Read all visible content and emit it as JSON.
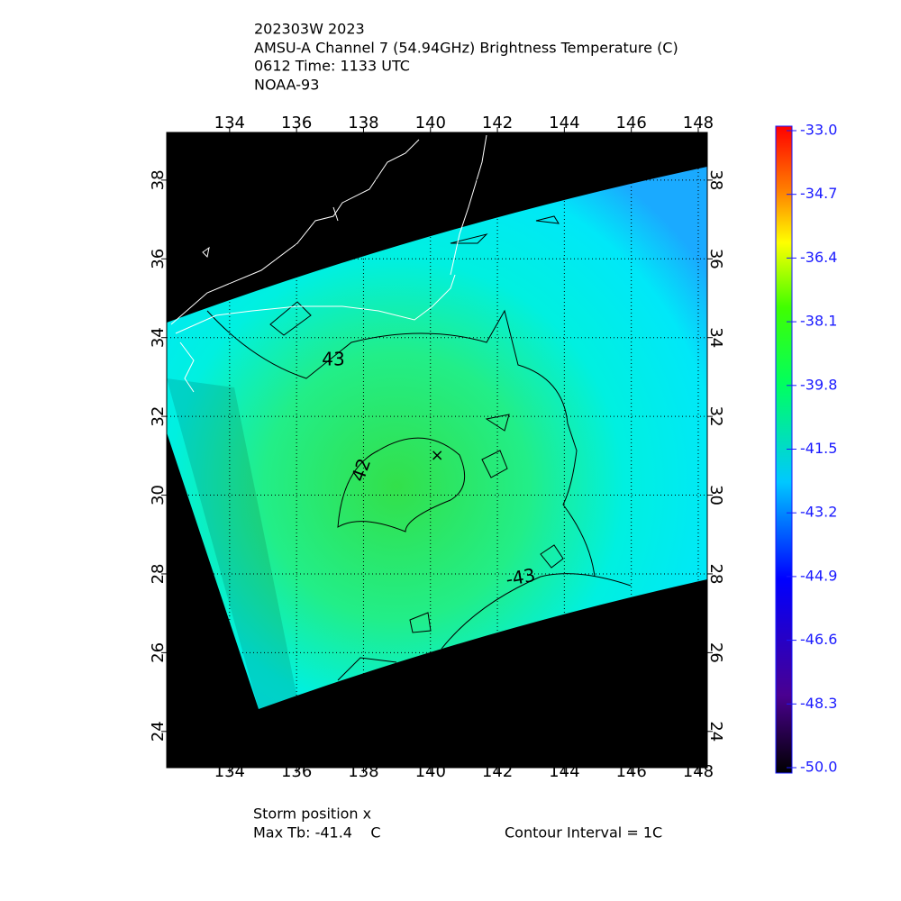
{
  "chart_data": {
    "type": "map",
    "title_lines": [
      "202303W 2023",
      "AMSU-A Channel 7 (54.94GHz) Brightness Temperature (C)",
      "0612 Time: 1133 UTC",
      "NOAA-93"
    ],
    "xlim": [
      132.12,
      148.27
    ],
    "ylim": [
      23.08,
      39.21
    ],
    "xticks": [
      134,
      136,
      138,
      140,
      142,
      144,
      146,
      148
    ],
    "yticks": [
      24,
      26,
      28,
      30,
      32,
      34,
      36,
      38
    ],
    "grid": true,
    "storm_position": [
      140.2,
      31.0
    ],
    "contour_labels": [
      "43",
      "42",
      "-43"
    ],
    "colorbar": {
      "clim": [
        -50,
        -33
      ],
      "ticks": [
        {
          "value": -33,
          "label": "-33.0"
        },
        {
          "value": -34.7,
          "label": "-34.7"
        },
        {
          "value": -36.4,
          "label": "-36.4"
        },
        {
          "value": -38.1,
          "label": "-38.1"
        },
        {
          "value": -39.8,
          "label": "-39.8"
        },
        {
          "value": -41.5,
          "label": "-41.5"
        },
        {
          "value": -43.2,
          "label": "-43.2"
        },
        {
          "value": -44.9,
          "label": "-44.9"
        },
        {
          "value": -46.6,
          "label": "-46.6"
        },
        {
          "value": -48.3,
          "label": "-48.3"
        },
        {
          "value": -50,
          "label": "-50.0"
        }
      ]
    },
    "footer": {
      "storm": "Storm position x",
      "max_tb": "Max Tb: -41.4    C",
      "contour_interval": "Contour Interval = 1C"
    }
  }
}
